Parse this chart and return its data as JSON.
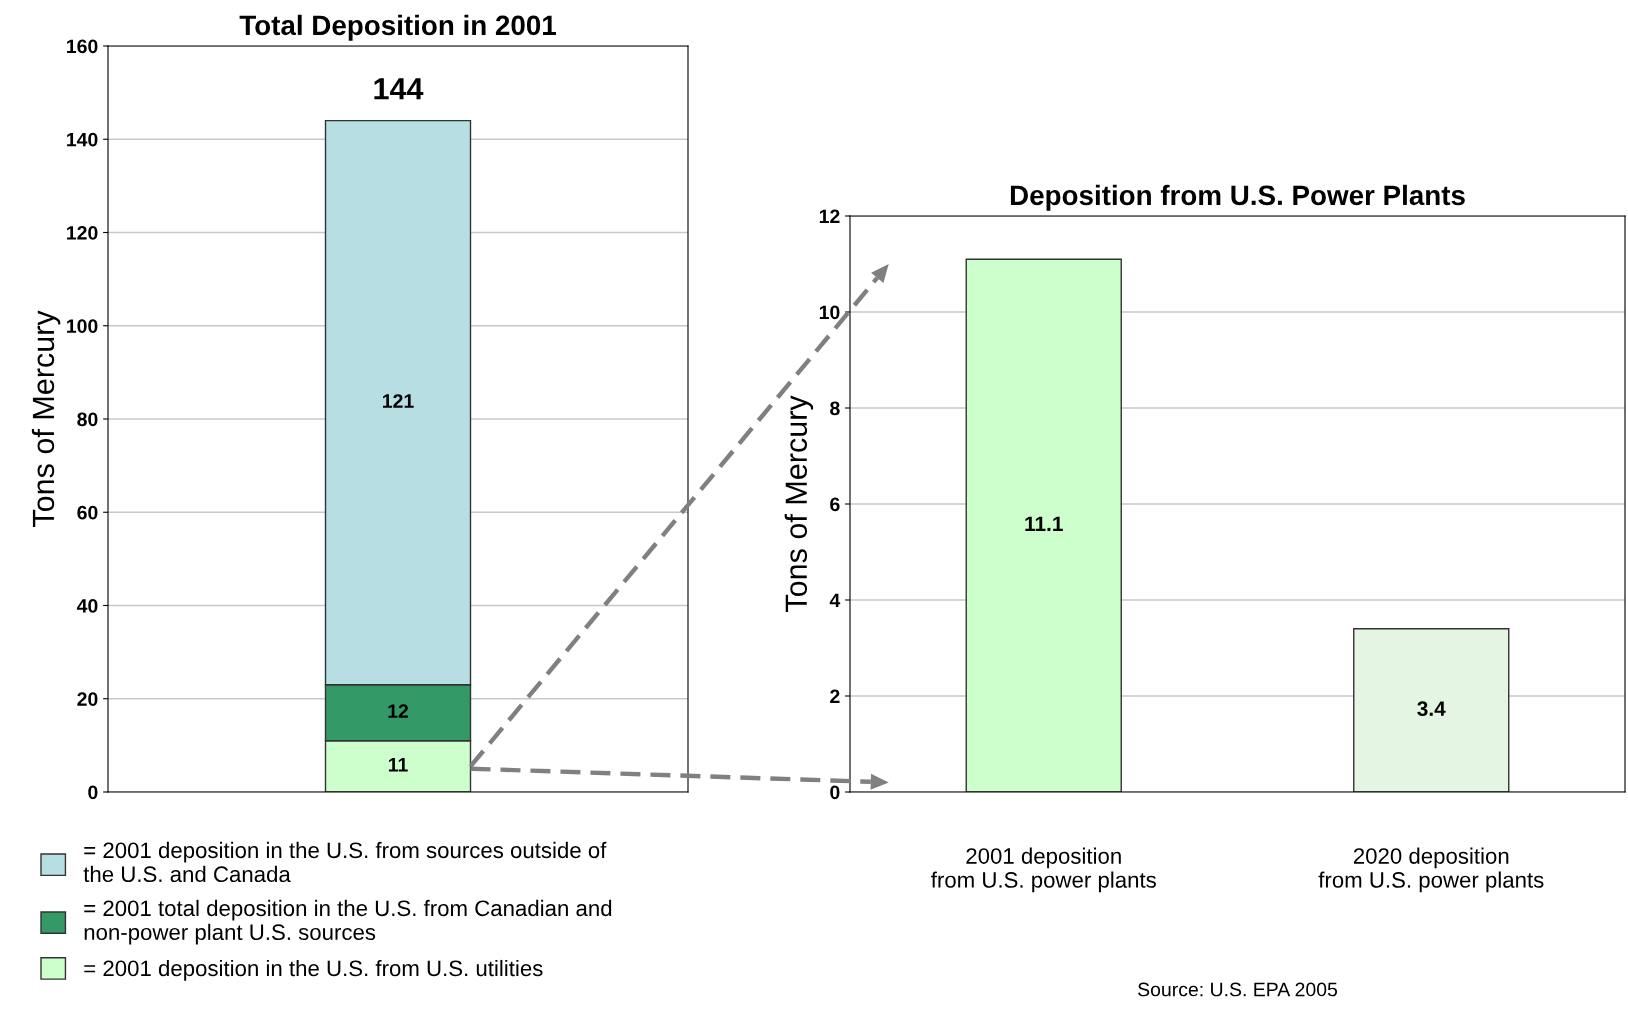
{
  "chart_data": [
    {
      "type": "bar",
      "title": "Total Deposition in 2001",
      "ylabel": "Tons of Mercury",
      "categories": [
        null
      ],
      "stacked": true,
      "data_labels": true,
      "totals": [
        "144"
      ],
      "series": [
        {
          "name": "= 2001 deposition in the U.S. from U.S. utilities",
          "color": "#ccffcc",
          "values": [
            11
          ]
        },
        {
          "name": "= 2001 total deposition in the U.S. from Canadian and\nnon-power plant U.S. sources",
          "color": "#339966",
          "values": [
            12
          ]
        },
        {
          "name": "= 2001 deposition in the U.S. from sources outside of\nthe U.S. and Canada",
          "color": "#b7dee2",
          "values": [
            121
          ]
        }
      ],
      "ylim": [
        0,
        160
      ],
      "yticks": [
        0,
        20,
        40,
        60,
        80,
        100,
        120,
        140,
        160
      ],
      "grid": "y",
      "legend": "bottom"
    },
    {
      "type": "bar",
      "title": "Deposition from U.S. Power Plants",
      "ylabel": "Tons of Mercury",
      "categories": [
        "2001 deposition\nfrom U.S. power plants",
        "2020 deposition\nfrom U.S. power plants"
      ],
      "values": [
        11.1,
        3.4
      ],
      "colors": [
        "#ccffcc",
        "#e4f5e4"
      ],
      "data_labels": true,
      "ylim": [
        0,
        12
      ],
      "yticks": [
        0,
        2,
        4,
        6,
        8,
        10,
        12
      ],
      "grid": "y",
      "annotations": [
        "Source: U.S. EPA 2005"
      ]
    }
  ]
}
